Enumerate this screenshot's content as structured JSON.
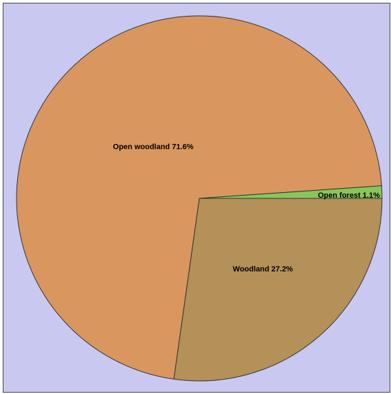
{
  "chart_data": {
    "type": "pie",
    "title": "",
    "slices": [
      {
        "label": "Open woodland",
        "value": 71.6,
        "display": "Open woodland 71.6%",
        "color": "#d9975f"
      },
      {
        "label": "Woodland",
        "value": 27.2,
        "display": "Woodland 27.2%",
        "color": "#b39159"
      },
      {
        "label": "Open forest",
        "value": 1.1,
        "display": "Open forest 1.1%",
        "color": "#88c65c"
      }
    ],
    "background": "#c8c8f0",
    "outline": "#333333"
  }
}
